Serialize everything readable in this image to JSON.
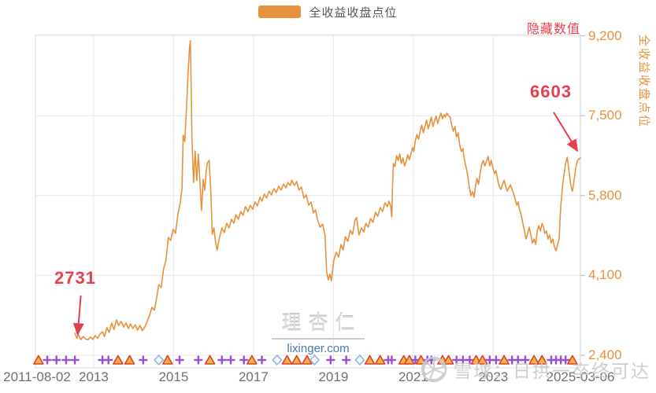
{
  "colors": {
    "orange": "#e8913d",
    "red": "#e5404c",
    "grid": "#e8e8e8",
    "border": "#dcdcdc",
    "axis_line": "#cfcfcf",
    "x_label": "#707070",
    "marker_plus": "#9b4fd0",
    "marker_warn_stroke": "#df3b30",
    "marker_warn_fill": "#f8b73e",
    "marker_diamond_stroke": "#8cb8da",
    "marker_diamond_fill": "#f4fafd"
  },
  "legend": {
    "label": "全收益收盘点位",
    "swatch_color": "#e8913d"
  },
  "controls": {
    "hide_values_label": "隐藏数值"
  },
  "y_axis_title": "全收益收盘点位",
  "watermarks": {
    "center_title": "理杏仁",
    "center_url": "lixinger.com",
    "bottom_right": "雪球：日拱一卒终可达"
  },
  "chart_data": {
    "type": "line",
    "title": "",
    "series_name": "全收益收盘点位",
    "line_color": "#e8913d",
    "xlabel": "",
    "ylabel": "全收益收盘点位",
    "x_range_labels": [
      "2011-08-02",
      "2025-03-06"
    ],
    "ylim": [
      2400,
      9200
    ],
    "grid": true,
    "legend_position": "top-center",
    "y_ticks": [
      {
        "label": "9,200",
        "value": 9200
      },
      {
        "label": "7,500",
        "value": 7500
      },
      {
        "label": "5,800",
        "value": 5800
      },
      {
        "label": "4,100",
        "value": 4100
      },
      {
        "label": "2,400",
        "value": 2400
      }
    ],
    "x_ticks": [
      {
        "label": "2011-08-02",
        "year": 2011.583,
        "grid": false
      },
      {
        "label": "2013",
        "year": 2013,
        "grid": true
      },
      {
        "label": "2015",
        "year": 2015,
        "grid": true
      },
      {
        "label": "2017",
        "year": 2017,
        "grid": true
      },
      {
        "label": "2019",
        "year": 2019,
        "grid": true
      },
      {
        "label": "2021",
        "year": 2021,
        "grid": true
      },
      {
        "label": "2023",
        "year": 2023,
        "grid": true
      },
      {
        "label": "2025-03-06",
        "year": 2025.18,
        "grid": false
      }
    ],
    "annotations": [
      {
        "text": "2731",
        "year": 2012.62,
        "value": 2731
      },
      {
        "text": "6603",
        "year": 2025.18,
        "value": 6603
      }
    ],
    "points": [
      [
        2012.53,
        2870
      ],
      [
        2012.58,
        2760
      ],
      [
        2012.62,
        2840
      ],
      [
        2012.68,
        2735
      ],
      [
        2012.74,
        2800
      ],
      [
        2012.8,
        2745
      ],
      [
        2012.86,
        2731
      ],
      [
        2012.92,
        2790
      ],
      [
        2012.98,
        2740
      ],
      [
        2013.04,
        2820
      ],
      [
        2013.1,
        2760
      ],
      [
        2013.16,
        2850
      ],
      [
        2013.22,
        2900
      ],
      [
        2013.27,
        2800
      ],
      [
        2013.33,
        2985
      ],
      [
        2013.39,
        2885
      ],
      [
        2013.45,
        3085
      ],
      [
        2013.51,
        2950
      ],
      [
        2013.57,
        3155
      ],
      [
        2013.63,
        3035
      ],
      [
        2013.69,
        3120
      ],
      [
        2013.75,
        3000
      ],
      [
        2013.81,
        3085
      ],
      [
        2013.87,
        2970
      ],
      [
        2013.92,
        3070
      ],
      [
        2013.98,
        2970
      ],
      [
        2014.04,
        3050
      ],
      [
        2014.1,
        2935
      ],
      [
        2014.16,
        3035
      ],
      [
        2014.22,
        2920
      ],
      [
        2014.28,
        3000
      ],
      [
        2014.34,
        3120
      ],
      [
        2014.4,
        3255
      ],
      [
        2014.46,
        3420
      ],
      [
        2014.52,
        3355
      ],
      [
        2014.57,
        3590
      ],
      [
        2014.63,
        3905
      ],
      [
        2014.69,
        3840
      ],
      [
        2014.75,
        4240
      ],
      [
        2014.81,
        4425
      ],
      [
        2014.87,
        4910
      ],
      [
        2014.93,
        4845
      ],
      [
        2014.99,
        5080
      ],
      [
        2015.05,
        4995
      ],
      [
        2015.11,
        5410
      ],
      [
        2015.17,
        5645
      ],
      [
        2015.21,
        5945
      ],
      [
        2015.24,
        7085
      ],
      [
        2015.28,
        6950
      ],
      [
        2015.32,
        7585
      ],
      [
        2015.36,
        8375
      ],
      [
        2015.4,
        8960
      ],
      [
        2015.42,
        9095
      ],
      [
        2015.44,
        8205
      ],
      [
        2015.46,
        7035
      ],
      [
        2015.5,
        6080
      ],
      [
        2015.54,
        6750
      ],
      [
        2015.58,
        6115
      ],
      [
        2015.62,
        6685
      ],
      [
        2015.66,
        6080
      ],
      [
        2015.7,
        5480
      ],
      [
        2015.74,
        6150
      ],
      [
        2015.78,
        5915
      ],
      [
        2015.82,
        6350
      ],
      [
        2015.85,
        6500
      ],
      [
        2015.89,
        6550
      ],
      [
        2015.93,
        5915
      ],
      [
        2015.97,
        4975
      ],
      [
        2016.01,
        5110
      ],
      [
        2016.05,
        4810
      ],
      [
        2016.09,
        4640
      ],
      [
        2016.15,
        4910
      ],
      [
        2016.21,
        5110
      ],
      [
        2016.27,
        5010
      ],
      [
        2016.33,
        5210
      ],
      [
        2016.39,
        5110
      ],
      [
        2016.45,
        5295
      ],
      [
        2016.51,
        5210
      ],
      [
        2016.56,
        5395
      ],
      [
        2016.62,
        5295
      ],
      [
        2016.68,
        5460
      ],
      [
        2016.74,
        5380
      ],
      [
        2016.8,
        5565
      ],
      [
        2016.86,
        5460
      ],
      [
        2016.92,
        5595
      ],
      [
        2016.98,
        5510
      ],
      [
        2017.04,
        5665
      ],
      [
        2017.1,
        5580
      ],
      [
        2017.16,
        5765
      ],
      [
        2017.21,
        5680
      ],
      [
        2017.27,
        5830
      ],
      [
        2017.33,
        5745
      ],
      [
        2017.39,
        5895
      ],
      [
        2017.45,
        5815
      ],
      [
        2017.51,
        5945
      ],
      [
        2017.57,
        5865
      ],
      [
        2017.63,
        5995
      ],
      [
        2017.69,
        5915
      ],
      [
        2017.75,
        6045
      ],
      [
        2017.81,
        5965
      ],
      [
        2017.86,
        6080
      ],
      [
        2017.92,
        6015
      ],
      [
        2017.96,
        6130
      ],
      [
        2018.02,
        6015
      ],
      [
        2018.08,
        6100
      ],
      [
        2018.14,
        5915
      ],
      [
        2018.2,
        5980
      ],
      [
        2018.26,
        5745
      ],
      [
        2018.32,
        5815
      ],
      [
        2018.38,
        5595
      ],
      [
        2018.44,
        5665
      ],
      [
        2018.5,
        5430
      ],
      [
        2018.55,
        5495
      ],
      [
        2018.61,
        5260
      ],
      [
        2018.67,
        5125
      ],
      [
        2018.73,
        5195
      ],
      [
        2018.79,
        4960
      ],
      [
        2018.83,
        4175
      ],
      [
        2018.87,
        4005
      ],
      [
        2018.91,
        4125
      ],
      [
        2018.95,
        3990
      ],
      [
        2019.01,
        4425
      ],
      [
        2019.07,
        4590
      ],
      [
        2019.13,
        4490
      ],
      [
        2019.19,
        4760
      ],
      [
        2019.24,
        4640
      ],
      [
        2019.3,
        4925
      ],
      [
        2019.36,
        4825
      ],
      [
        2019.42,
        5060
      ],
      [
        2019.48,
        4975
      ],
      [
        2019.54,
        5280
      ],
      [
        2019.58,
        5330
      ],
      [
        2019.64,
        4960
      ],
      [
        2019.7,
        5110
      ],
      [
        2019.76,
        5025
      ],
      [
        2019.81,
        5210
      ],
      [
        2019.87,
        5125
      ],
      [
        2019.93,
        5310
      ],
      [
        2019.99,
        5230
      ],
      [
        2020.05,
        5445
      ],
      [
        2020.11,
        5360
      ],
      [
        2020.17,
        5545
      ],
      [
        2020.23,
        5460
      ],
      [
        2020.29,
        5645
      ],
      [
        2020.35,
        5565
      ],
      [
        2020.39,
        5680
      ],
      [
        2020.43,
        5580
      ],
      [
        2020.46,
        5345
      ],
      [
        2020.48,
        6030
      ],
      [
        2020.5,
        6485
      ],
      [
        2020.54,
        6415
      ],
      [
        2020.58,
        6650
      ],
      [
        2020.62,
        6550
      ],
      [
        2020.66,
        6685
      ],
      [
        2020.7,
        6485
      ],
      [
        2020.74,
        6600
      ],
      [
        2020.78,
        6430
      ],
      [
        2020.82,
        6530
      ],
      [
        2020.86,
        6665
      ],
      [
        2020.9,
        6565
      ],
      [
        2020.94,
        6685
      ],
      [
        2020.98,
        6820
      ],
      [
        2021.01,
        6735
      ],
      [
        2021.05,
        6970
      ],
      [
        2021.09,
        7100
      ],
      [
        2021.13,
        7000
      ],
      [
        2021.17,
        7170
      ],
      [
        2021.21,
        7300
      ],
      [
        2021.25,
        7135
      ],
      [
        2021.29,
        7270
      ],
      [
        2021.33,
        7405
      ],
      [
        2021.37,
        7220
      ],
      [
        2021.41,
        7335
      ],
      [
        2021.45,
        7470
      ],
      [
        2021.49,
        7270
      ],
      [
        2021.53,
        7385
      ],
      [
        2021.57,
        7490
      ],
      [
        2021.61,
        7335
      ],
      [
        2021.65,
        7455
      ],
      [
        2021.69,
        7555
      ],
      [
        2021.73,
        7435
      ],
      [
        2021.77,
        7520
      ],
      [
        2021.8,
        7470
      ],
      [
        2021.84,
        7555
      ],
      [
        2021.88,
        7500
      ],
      [
        2021.92,
        7470
      ],
      [
        2021.96,
        7300
      ],
      [
        2022,
        7170
      ],
      [
        2022.04,
        7270
      ],
      [
        2022.08,
        7050
      ],
      [
        2022.12,
        7135
      ],
      [
        2022.16,
        6885
      ],
      [
        2022.2,
        6735
      ],
      [
        2022.24,
        6800
      ],
      [
        2022.28,
        6550
      ],
      [
        2022.32,
        6400
      ],
      [
        2022.36,
        6230
      ],
      [
        2022.4,
        5980
      ],
      [
        2022.44,
        5795
      ],
      [
        2022.48,
        5880
      ],
      [
        2022.52,
        5765
      ],
      [
        2022.55,
        5965
      ],
      [
        2022.59,
        6165
      ],
      [
        2022.63,
        6045
      ],
      [
        2022.67,
        6265
      ],
      [
        2022.71,
        6465
      ],
      [
        2022.75,
        6550
      ],
      [
        2022.79,
        6430
      ],
      [
        2022.83,
        6530
      ],
      [
        2022.87,
        6635
      ],
      [
        2022.91,
        6430
      ],
      [
        2022.95,
        6550
      ],
      [
        2022.99,
        6385
      ],
      [
        2023.03,
        6265
      ],
      [
        2023.07,
        6330
      ],
      [
        2023.11,
        6130
      ],
      [
        2023.15,
        5995
      ],
      [
        2023.19,
        5930
      ],
      [
        2023.23,
        6030
      ],
      [
        2023.27,
        6130
      ],
      [
        2023.31,
        5995
      ],
      [
        2023.35,
        5895
      ],
      [
        2023.39,
        5965
      ],
      [
        2023.43,
        6030
      ],
      [
        2023.47,
        5930
      ],
      [
        2023.51,
        5830
      ],
      [
        2023.55,
        5715
      ],
      [
        2023.59,
        5595
      ],
      [
        2023.62,
        5665
      ],
      [
        2023.66,
        5495
      ],
      [
        2023.7,
        5380
      ],
      [
        2023.74,
        5210
      ],
      [
        2023.78,
        5045
      ],
      [
        2023.82,
        4875
      ],
      [
        2023.86,
        4995
      ],
      [
        2023.9,
        5125
      ],
      [
        2023.94,
        4960
      ],
      [
        2023.98,
        4790
      ],
      [
        2024.02,
        4875
      ],
      [
        2024.06,
        4760
      ],
      [
        2024.1,
        5045
      ],
      [
        2024.14,
        5160
      ],
      [
        2024.18,
        5045
      ],
      [
        2024.22,
        5210
      ],
      [
        2024.26,
        5125
      ],
      [
        2024.29,
        4995
      ],
      [
        2024.33,
        5045
      ],
      [
        2024.37,
        4875
      ],
      [
        2024.41,
        4960
      ],
      [
        2024.45,
        4790
      ],
      [
        2024.49,
        4875
      ],
      [
        2024.53,
        4710
      ],
      [
        2024.57,
        4625
      ],
      [
        2024.61,
        4760
      ],
      [
        2024.65,
        4875
      ],
      [
        2024.67,
        5280
      ],
      [
        2024.69,
        5580
      ],
      [
        2024.73,
        5980
      ],
      [
        2024.77,
        6250
      ],
      [
        2024.81,
        6485
      ],
      [
        2024.85,
        6615
      ],
      [
        2024.89,
        6365
      ],
      [
        2024.93,
        6080
      ],
      [
        2024.96,
        5945
      ],
      [
        2024.98,
        5895
      ],
      [
        2025.02,
        6115
      ],
      [
        2025.06,
        6365
      ],
      [
        2025.1,
        6530
      ],
      [
        2025.14,
        6580
      ],
      [
        2025.18,
        6603
      ]
    ],
    "event_markers": [
      {
        "t": "warn",
        "year": 2011.62
      },
      {
        "t": "plus",
        "year": 2011.84
      },
      {
        "t": "plus",
        "year": 2012.07
      },
      {
        "t": "plus",
        "year": 2012.31
      },
      {
        "t": "plus",
        "year": 2012.53
      },
      {
        "t": "plus",
        "year": 2013.22
      },
      {
        "t": "plus",
        "year": 2013.37
      },
      {
        "t": "warn",
        "year": 2013.61
      },
      {
        "t": "warn",
        "year": 2013.9
      },
      {
        "t": "plus",
        "year": 2014.24
      },
      {
        "t": "diamond",
        "year": 2014.63
      },
      {
        "t": "warn",
        "year": 2014.85
      },
      {
        "t": "plus",
        "year": 2015.15
      },
      {
        "t": "plus",
        "year": 2015.62
      },
      {
        "t": "warn",
        "year": 2015.91
      },
      {
        "t": "plus",
        "year": 2016.21
      },
      {
        "t": "plus",
        "year": 2016.43
      },
      {
        "t": "plus",
        "year": 2016.76
      },
      {
        "t": "warn",
        "year": 2016.96
      },
      {
        "t": "plus",
        "year": 2017.21
      },
      {
        "t": "diamond",
        "year": 2017.59
      },
      {
        "t": "warn",
        "year": 2017.84
      },
      {
        "t": "warn",
        "year": 2018.08
      },
      {
        "t": "warn",
        "year": 2018.34
      },
      {
        "t": "diamond",
        "year": 2018.53
      },
      {
        "t": "plus",
        "year": 2018.93
      },
      {
        "t": "plus",
        "year": 2019.32
      },
      {
        "t": "diamond",
        "year": 2019.66
      },
      {
        "t": "warn",
        "year": 2019.91
      },
      {
        "t": "warn",
        "year": 2020.17
      },
      {
        "t": "plus",
        "year": 2020.37
      },
      {
        "t": "plus",
        "year": 2020.46
      },
      {
        "t": "warn",
        "year": 2020.76
      },
      {
        "t": "warn",
        "year": 2020.9
      },
      {
        "t": "plus",
        "year": 2021.05
      },
      {
        "t": "warn",
        "year": 2021.19
      },
      {
        "t": "plus",
        "year": 2021.35
      },
      {
        "t": "plus",
        "year": 2021.45
      },
      {
        "t": "warn",
        "year": 2021.73
      },
      {
        "t": "warn",
        "year": 2021.88
      },
      {
        "t": "plus",
        "year": 2022.08
      },
      {
        "t": "plus",
        "year": 2022.24
      },
      {
        "t": "plus",
        "year": 2022.41
      },
      {
        "t": "warn",
        "year": 2022.57
      },
      {
        "t": "warn",
        "year": 2022.73
      },
      {
        "t": "plus",
        "year": 2022.91
      },
      {
        "t": "plus",
        "year": 2023.07
      },
      {
        "t": "warn",
        "year": 2023.27
      },
      {
        "t": "plus",
        "year": 2023.47
      },
      {
        "t": "plus",
        "year": 2023.62
      },
      {
        "t": "plus",
        "year": 2023.8
      },
      {
        "t": "warn",
        "year": 2024.02
      },
      {
        "t": "warn",
        "year": 2024.22
      },
      {
        "t": "plus",
        "year": 2024.45
      },
      {
        "t": "plus",
        "year": 2024.57
      },
      {
        "t": "plus",
        "year": 2024.69
      },
      {
        "t": "plus",
        "year": 2024.81
      },
      {
        "t": "warn",
        "year": 2024.98
      }
    ]
  }
}
